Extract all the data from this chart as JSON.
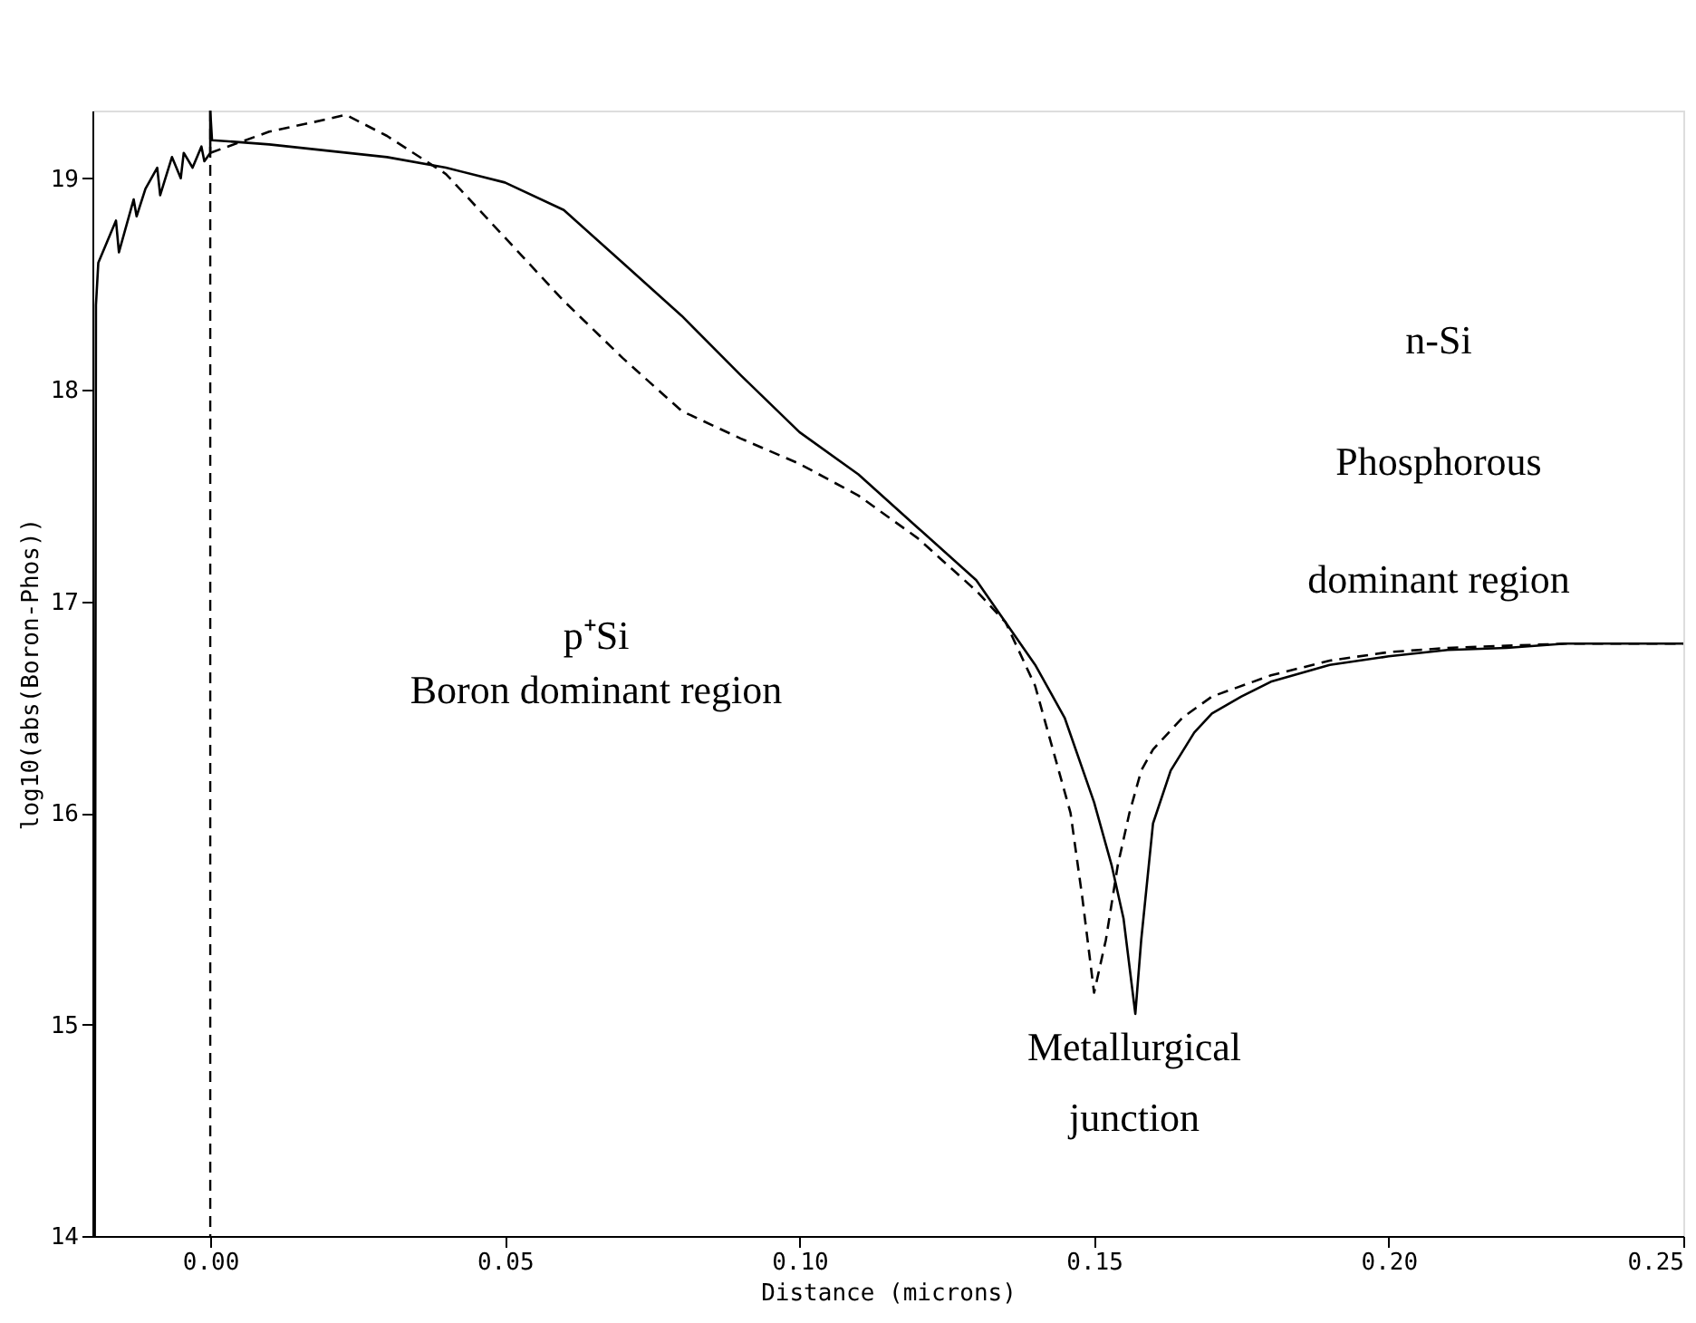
{
  "chart_data": {
    "type": "line",
    "xlabel": "Distance (microns)",
    "ylabel": "log10(abs(Boron-Phos))",
    "xlim": [
      -0.02,
      0.25
    ],
    "ylim": [
      14,
      19.32
    ],
    "xticks": [
      {
        "value": 0,
        "label": "0.00"
      },
      {
        "value": 0.05,
        "label": "0.05"
      },
      {
        "value": 0.1,
        "label": "0.10"
      },
      {
        "value": 0.15,
        "label": "0.15"
      },
      {
        "value": 0.2,
        "label": "0.20"
      },
      {
        "value": 0.25,
        "label": "0.25"
      }
    ],
    "yticks": [
      14,
      15,
      16,
      17,
      18,
      19
    ],
    "grid": false,
    "marker": "none",
    "series": [
      {
        "color": "#000000",
        "line_style": "solid",
        "x": [
          -0.0196,
          -0.0194,
          -0.019,
          -0.0175,
          -0.016,
          -0.0155,
          -0.013,
          -0.0125,
          -0.011,
          -0.009,
          -0.0085,
          -0.0065,
          -0.005,
          -0.0045,
          -0.003,
          -0.0015,
          -0.001,
          0.0,
          0.0,
          0.0003,
          0.01,
          0.02,
          0.03,
          0.04,
          0.05,
          0.06,
          0.07,
          0.08,
          0.09,
          0.1,
          0.11,
          0.12,
          0.13,
          0.14,
          0.145,
          0.15,
          0.153,
          0.155,
          0.157,
          0.158,
          0.16,
          0.163,
          0.167,
          0.17,
          0.175,
          0.18,
          0.19,
          0.2,
          0.21,
          0.22,
          0.23,
          0.24,
          0.25
        ],
        "values": [
          14.0,
          18.4,
          18.6,
          18.7,
          18.8,
          18.65,
          18.9,
          18.82,
          18.95,
          19.05,
          18.92,
          19.1,
          19.0,
          19.12,
          19.05,
          19.15,
          19.08,
          19.12,
          19.32,
          19.18,
          19.16,
          19.13,
          19.1,
          19.05,
          18.98,
          18.85,
          18.6,
          18.35,
          18.07,
          17.8,
          17.6,
          17.35,
          17.1,
          16.7,
          16.45,
          16.05,
          15.75,
          15.5,
          15.05,
          15.4,
          15.95,
          16.2,
          16.38,
          16.47,
          16.55,
          16.62,
          16.7,
          16.74,
          16.77,
          16.78,
          16.8,
          16.8,
          16.8
        ]
      },
      {
        "color": "#000000",
        "line_style": "dashed",
        "x": [
          0.0,
          0.01,
          0.02,
          0.023,
          0.03,
          0.04,
          0.05,
          0.06,
          0.07,
          0.08,
          0.09,
          0.1,
          0.11,
          0.12,
          0.13,
          0.135,
          0.14,
          0.143,
          0.146,
          0.148,
          0.15,
          0.152,
          0.154,
          0.156,
          0.158,
          0.16,
          0.165,
          0.17,
          0.18,
          0.19,
          0.2,
          0.21,
          0.22,
          0.23,
          0.24,
          0.25
        ],
        "values": [
          19.12,
          19.22,
          19.28,
          19.3,
          19.2,
          19.02,
          18.72,
          18.42,
          18.15,
          17.9,
          17.77,
          17.65,
          17.5,
          17.3,
          17.05,
          16.9,
          16.6,
          16.3,
          16.0,
          15.6,
          15.15,
          15.4,
          15.75,
          16.0,
          16.2,
          16.3,
          16.45,
          16.55,
          16.65,
          16.72,
          16.76,
          16.78,
          16.79,
          16.8,
          16.8,
          16.8
        ]
      }
    ],
    "ref_lines": [
      {
        "axis": "x",
        "value": 0,
        "line_style": "dashed",
        "color": "#000000"
      }
    ],
    "annotations": [
      "p⁺Si",
      "Boron dominant region",
      "n-Si",
      "Phosphorous",
      "dominant region",
      "Metallurgical",
      "junction"
    ]
  }
}
